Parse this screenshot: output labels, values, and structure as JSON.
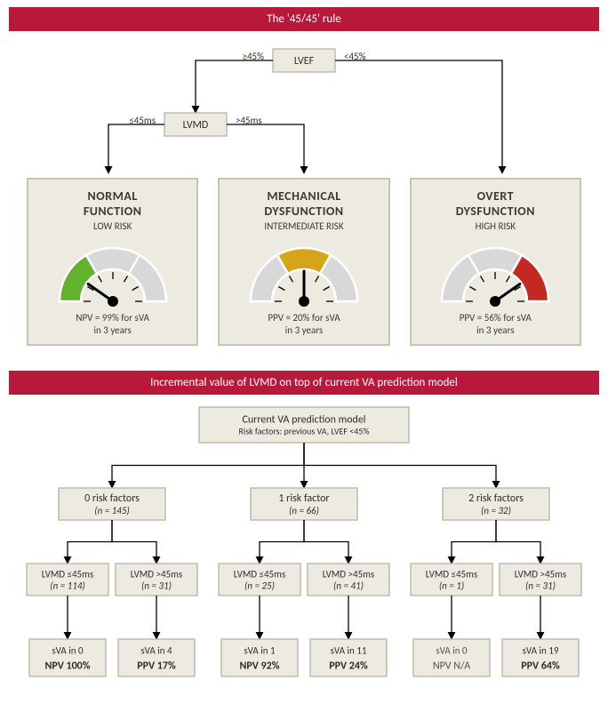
{
  "colors": {
    "banner": "#b8193a",
    "node_fill": "#edeae1",
    "node_stroke": "#b9b4a2",
    "card_stroke": "#c9c5b5",
    "arrow": "#000000",
    "text": "#2d2d28",
    "muted": "#545048",
    "gauge_bg": "#d8d8d8",
    "gauge_green": "#62b12f",
    "gauge_yellow": "#d6a419",
    "gauge_red": "#c42821"
  },
  "top": {
    "banner": "The '45/45' rule",
    "lvef": {
      "label": "LVEF",
      "left": "≥45%",
      "right": "<45%"
    },
    "lvmd": {
      "label": "LVMD",
      "left": "≤45ms",
      "right": ">45ms"
    },
    "cards": [
      {
        "title1": "NORMAL",
        "title2": "FUNCTION",
        "level": "LOW RISK",
        "stat1": "NPV = 99% for sVA",
        "stat2": "in 3 years",
        "needle_deg": -55,
        "fill_seg": 0,
        "fill_color": "#62b12f"
      },
      {
        "title1": "MECHANICAL",
        "title2": "DYSFUNCTION",
        "level": "INTERMEDIATE RISK",
        "stat1": "PPV = 20% for sVA",
        "stat2": "in 3 years",
        "needle_deg": 0,
        "fill_seg": 1,
        "fill_color": "#d6a419"
      },
      {
        "title1": "OVERT",
        "title2": "DYSFUNCTION",
        "level": "HIGH RISK",
        "stat1": "PPV = 56% for sVA",
        "stat2": "in 3 years",
        "needle_deg": 55,
        "fill_seg": 2,
        "fill_color": "#c42821"
      }
    ]
  },
  "bottom": {
    "banner": "Incremental value of LVMD on top of current VA prediction model",
    "root": {
      "line1": "Current VA prediction model",
      "line2": "Risk factors: previous VA, LVEF <45%"
    },
    "groups": [
      {
        "head1": "0 risk factors",
        "head2": "(n = 145)",
        "left": {
          "l1": "LVMD ≤45ms",
          "l2": "(n = 114)",
          "r1": "sVA in 0",
          "r2": "NPV 100%"
        },
        "right": {
          "l1": "LVMD >45ms",
          "l2": "(n = 31)",
          "r1": "sVA in 4",
          "r2": "PPV 17%"
        }
      },
      {
        "head1": "1 risk factor",
        "head2": "(n = 66)",
        "left": {
          "l1": "LVMD ≤45ms",
          "l2": "(n = 25)",
          "r1": "sVA in 1",
          "r2": "NPV 92%"
        },
        "right": {
          "l1": "LVMD >45ms",
          "l2": "(n = 41)",
          "r1": "sVA in 11",
          "r2": "PPV 24%"
        }
      },
      {
        "head1": "2 risk factors",
        "head2": "(n = 32)",
        "left": {
          "l1": "LVMD ≤45ms",
          "l2": "(n = 1)",
          "r1": "sVA in 0",
          "r2": "NPV N/A",
          "muted": true
        },
        "right": {
          "l1": "LVMD >45ms",
          "l2": "(n = 31)",
          "r1": "sVA in 19",
          "r2": "PPV 64%"
        }
      }
    ]
  },
  "gauge": {
    "outer_r": 60,
    "inner_r": 36,
    "thickness": 24,
    "seg_angles_deg": [
      [
        -90,
        -30
      ],
      [
        -30,
        30
      ],
      [
        30,
        90
      ]
    ],
    "tick_angles_deg": [
      -90,
      -60,
      -30,
      0,
      30,
      60,
      90
    ]
  }
}
